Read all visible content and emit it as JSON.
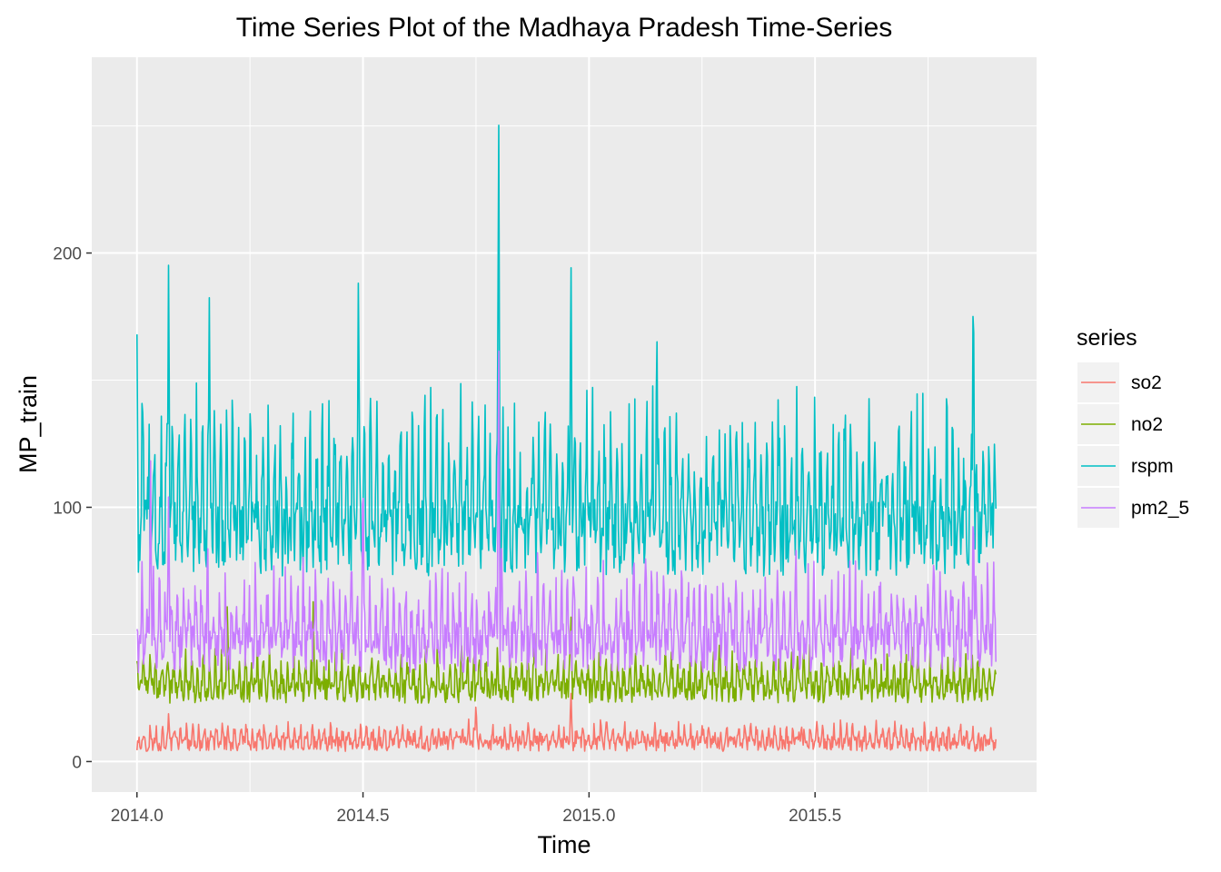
{
  "chart_data": {
    "type": "line",
    "title": "Time Series Plot of the Madhaya Pradesh Time-Series",
    "xlabel": "Time",
    "ylabel": "MP_train",
    "xlim": [
      2013.9,
      2015.99
    ],
    "ylim": [
      -12,
      277
    ],
    "x_ticks": [
      2014.0,
      2014.5,
      2015.0,
      2015.5
    ],
    "x_tick_labels": [
      "2014.0",
      "2014.5",
      "2015.0",
      "2015.5"
    ],
    "y_ticks": [
      0,
      100,
      200
    ],
    "y_tick_labels": [
      "0",
      "100",
      "200"
    ],
    "x_start": 2014.0,
    "x_end": 2015.9,
    "grid": true,
    "legend": {
      "title": "series",
      "position": "right"
    },
    "series": [
      {
        "name": "so2",
        "color": "#F8766D",
        "base": 7,
        "amp": 5,
        "noise": 3,
        "spikes": [
          {
            "x": 2014.07,
            "y": 20
          },
          {
            "x": 2014.75,
            "y": 24
          },
          {
            "x": 2014.96,
            "y": 29
          },
          {
            "x": 2015.47,
            "y": 15
          },
          {
            "x": 2015.82,
            "y": 14
          }
        ],
        "values_summary": {
          "min": 0,
          "max": 29,
          "typical": 7
        }
      },
      {
        "name": "no2",
        "color": "#7CAE00",
        "base": 28,
        "amp": 10,
        "noise": 5,
        "spikes": [
          {
            "x": 2014.2,
            "y": 65
          },
          {
            "x": 2014.39,
            "y": 65
          },
          {
            "x": 2014.96,
            "y": 60
          },
          {
            "x": 2014.88,
            "y": 55
          }
        ],
        "values_summary": {
          "min": 15,
          "max": 66,
          "typical": 28
        }
      },
      {
        "name": "rspm",
        "color": "#00BFC4",
        "base": 88,
        "amp": 35,
        "noise": 15,
        "spikes": [
          {
            "x": 2014.0,
            "y": 168
          },
          {
            "x": 2014.07,
            "y": 206
          },
          {
            "x": 2014.16,
            "y": 184
          },
          {
            "x": 2014.49,
            "y": 201
          },
          {
            "x": 2014.8,
            "y": 265
          },
          {
            "x": 2014.96,
            "y": 206
          },
          {
            "x": 2015.15,
            "y": 179
          },
          {
            "x": 2015.85,
            "y": 202
          }
        ],
        "values_summary": {
          "min": 35,
          "max": 265,
          "typical": 88
        }
      },
      {
        "name": "pm2_5",
        "color": "#C77CFF",
        "base": 45,
        "amp": 20,
        "noise": 10,
        "spikes": [
          {
            "x": 2014.03,
            "y": 121
          },
          {
            "x": 2014.07,
            "y": 110
          },
          {
            "x": 2014.5,
            "y": 123
          },
          {
            "x": 2014.8,
            "y": 172
          },
          {
            "x": 2015.85,
            "y": 107
          }
        ],
        "values_summary": {
          "min": 10,
          "max": 172,
          "typical": 45
        }
      }
    ]
  }
}
